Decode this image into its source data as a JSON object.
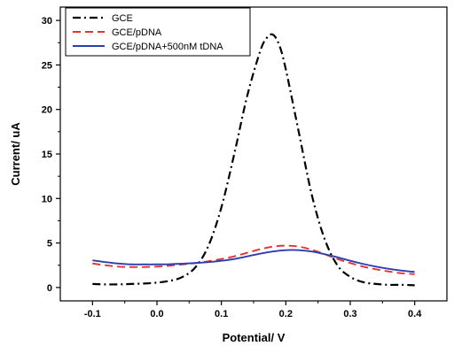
{
  "chart_data": {
    "type": "line",
    "xlabel": "Potential/ V",
    "ylabel": "Current/ uA",
    "xlim": [
      -0.15,
      0.45
    ],
    "ylim": [
      -1.5,
      31.5
    ],
    "x_ticks": [
      -0.1,
      0.0,
      0.1,
      0.2,
      0.3,
      0.4
    ],
    "x_tick_labels": [
      "-0.1",
      "0.0",
      "0.1",
      "0.2",
      "0.3",
      "0.4"
    ],
    "y_ticks": [
      0,
      5,
      10,
      15,
      20,
      25,
      30
    ],
    "y_tick_labels": [
      "0",
      "5",
      "10",
      "15",
      "20",
      "25",
      "30"
    ],
    "grid": false,
    "legend_position": "top-left",
    "series": [
      {
        "name": "GCE",
        "color": "#000000",
        "style": "dash-dot",
        "x": [
          -0.1,
          -0.08,
          -0.06,
          -0.04,
          -0.02,
          0.0,
          0.02,
          0.04,
          0.06,
          0.08,
          0.1,
          0.12,
          0.14,
          0.16,
          0.17,
          0.18,
          0.19,
          0.2,
          0.22,
          0.24,
          0.26,
          0.28,
          0.3,
          0.32,
          0.34,
          0.36,
          0.38,
          0.4
        ],
        "y": [
          0.4,
          0.35,
          0.35,
          0.4,
          0.45,
          0.55,
          0.75,
          1.2,
          2.3,
          4.7,
          9.0,
          15.0,
          21.5,
          26.5,
          28.0,
          28.4,
          27.2,
          24.5,
          17.5,
          10.5,
          5.5,
          2.5,
          1.2,
          0.6,
          0.4,
          0.3,
          0.3,
          0.25
        ]
      },
      {
        "name": "GCE/pDNA",
        "color": "#e8322d",
        "style": "dash",
        "x": [
          -0.1,
          -0.08,
          -0.06,
          -0.04,
          -0.02,
          0.0,
          0.02,
          0.04,
          0.06,
          0.08,
          0.1,
          0.12,
          0.14,
          0.16,
          0.18,
          0.2,
          0.22,
          0.24,
          0.26,
          0.28,
          0.3,
          0.32,
          0.34,
          0.36,
          0.38,
          0.4
        ],
        "y": [
          2.7,
          2.5,
          2.35,
          2.3,
          2.3,
          2.35,
          2.45,
          2.6,
          2.75,
          2.95,
          3.2,
          3.5,
          3.9,
          4.3,
          4.6,
          4.7,
          4.6,
          4.25,
          3.75,
          3.2,
          2.75,
          2.35,
          2.05,
          1.8,
          1.6,
          1.5
        ]
      },
      {
        "name": "GCE/pDNA+500nM tDNA",
        "color": "#2b3fb0",
        "style": "solid",
        "x": [
          -0.1,
          -0.08,
          -0.06,
          -0.04,
          -0.02,
          0.0,
          0.02,
          0.04,
          0.06,
          0.08,
          0.1,
          0.12,
          0.14,
          0.16,
          0.18,
          0.2,
          0.22,
          0.24,
          0.26,
          0.28,
          0.3,
          0.32,
          0.34,
          0.36,
          0.38,
          0.4
        ],
        "y": [
          3.05,
          2.85,
          2.7,
          2.6,
          2.6,
          2.6,
          2.62,
          2.68,
          2.75,
          2.85,
          3.0,
          3.2,
          3.5,
          3.8,
          4.05,
          4.2,
          4.2,
          4.05,
          3.75,
          3.4,
          3.0,
          2.65,
          2.35,
          2.1,
          1.9,
          1.75
        ]
      }
    ]
  }
}
